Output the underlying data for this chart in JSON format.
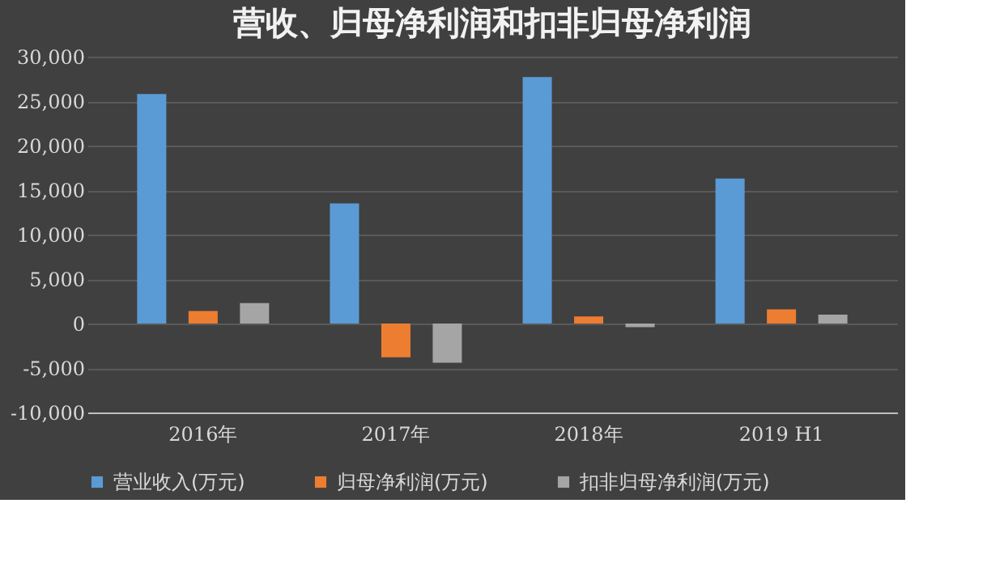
{
  "chart_data": {
    "type": "bar",
    "title": "营收、归母净利润和扣非归母净利润",
    "categories": [
      "2016年",
      "2017年",
      "2018年",
      "2019 H1"
    ],
    "series": [
      {
        "name": "营业收入(万元)",
        "color": "#5b9bd5",
        "values": [
          25800,
          13500,
          27700,
          16300
        ]
      },
      {
        "name": "归母净利润(万元)",
        "color": "#ed7d31",
        "values": [
          1400,
          -3800,
          800,
          1600
        ]
      },
      {
        "name": "扣非归母净利润(万元)",
        "color": "#a5a5a5",
        "values": [
          2300,
          -4400,
          -400,
          1000
        ]
      }
    ],
    "ylim": [
      -10000,
      30000
    ],
    "yticks": [
      {
        "value": -10000,
        "label": "-10,000"
      },
      {
        "value": -5000,
        "label": "-5,000"
      },
      0,
      {
        "value": 5000,
        "label": "5,000"
      },
      {
        "value": 10000,
        "label": "10,000"
      },
      {
        "value": 15000,
        "label": "15,000"
      },
      {
        "value": 20000,
        "label": "20,000"
      },
      {
        "value": 25000,
        "label": "25,000"
      },
      {
        "value": 30000,
        "label": "30,000"
      }
    ],
    "grid": "y",
    "legend": "bottom"
  }
}
